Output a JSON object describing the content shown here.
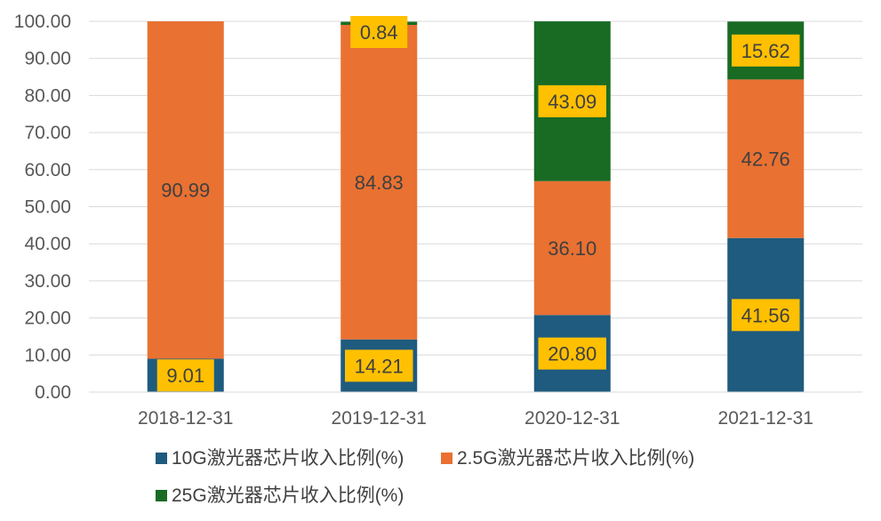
{
  "chart_data": {
    "type": "bar",
    "stacked": true,
    "categories": [
      "2018-12-31",
      "2019-12-31",
      "2020-12-31",
      "2021-12-31"
    ],
    "series": [
      {
        "name": "10G激光器芯片收入比例(%)",
        "color": "#1f5b7e",
        "values": [
          9.01,
          14.21,
          20.8,
          41.56
        ],
        "labels": [
          "9.01",
          "14.21",
          "20.80",
          "41.56"
        ],
        "label_style": "boxed"
      },
      {
        "name": "2.5G激光器芯片收入比例(%)",
        "color": "#e97132",
        "values": [
          90.99,
          84.83,
          36.1,
          42.76
        ],
        "labels": [
          "90.99",
          "84.83",
          "36.10",
          "42.76"
        ],
        "label_style": "plain"
      },
      {
        "name": "25G激光器芯片收入比例(%)",
        "color": "#196b24",
        "values": [
          0,
          0.84,
          43.09,
          15.62
        ],
        "labels": [
          "",
          "0.84",
          "43.09",
          "15.62"
        ],
        "label_style": "boxed"
      }
    ],
    "ylim": [
      0,
      100
    ],
    "yticks": [
      "0.00",
      "10.00",
      "20.00",
      "30.00",
      "40.00",
      "50.00",
      "60.00",
      "70.00",
      "80.00",
      "90.00",
      "100.00"
    ],
    "grid": true,
    "legend_position": "bottom",
    "label_box_color": "#ffc000",
    "label_dark_text": "#404040"
  }
}
